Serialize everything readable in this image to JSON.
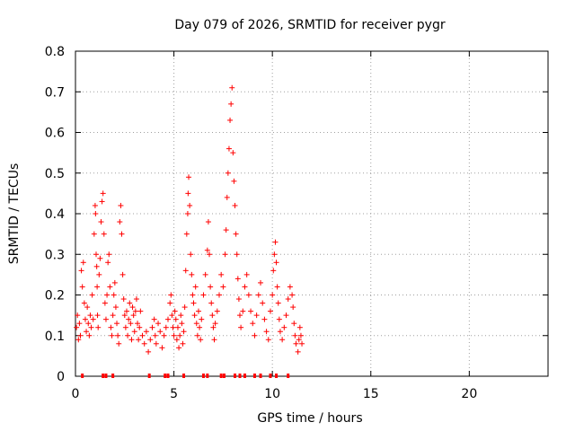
{
  "chart_data": {
    "type": "scatter",
    "title": "Day 079 of 2026, SRMTID for receiver pygr",
    "xlabel": "GPS time / hours",
    "ylabel": "SRMTID / TECUs",
    "xlim": [
      0,
      24
    ],
    "ylim": [
      0,
      0.8
    ],
    "xticks": [
      0,
      5,
      10,
      15,
      20
    ],
    "yticks": [
      0,
      0.1,
      0.2,
      0.3,
      0.4,
      0.5,
      0.6,
      0.7,
      0.8
    ],
    "xtick_labels": [
      "0",
      "5",
      "10",
      "15",
      "20"
    ],
    "ytick_labels": [
      "0",
      "0.1",
      "0.2",
      "0.3",
      "0.4",
      "0.5",
      "0.6",
      "0.7",
      "0.8"
    ],
    "grid": true,
    "marker": "+",
    "color": "#ff0000",
    "series": [
      {
        "name": "SRMTID",
        "points": [
          [
            0.05,
            0.12
          ],
          [
            0.1,
            0.15
          ],
          [
            0.15,
            0.09
          ],
          [
            0.2,
            0.13
          ],
          [
            0.25,
            0.1
          ],
          [
            0.3,
            0.26
          ],
          [
            0.35,
            0.22
          ],
          [
            0.4,
            0.28
          ],
          [
            0.45,
            0.18
          ],
          [
            0.5,
            0.14
          ],
          [
            0.55,
            0.11
          ],
          [
            0.6,
            0.17
          ],
          [
            0.65,
            0.13
          ],
          [
            0.7,
            0.1
          ],
          [
            0.75,
            0.15
          ],
          [
            0.8,
            0.12
          ],
          [
            0.85,
            0.2
          ],
          [
            0.9,
            0.14
          ],
          [
            0.95,
            0.35
          ],
          [
            1.0,
            0.42
          ],
          [
            1.02,
            0.4
          ],
          [
            1.05,
            0.3
          ],
          [
            1.08,
            0.27
          ],
          [
            1.1,
            0.22
          ],
          [
            1.12,
            0.15
          ],
          [
            1.15,
            0.12
          ],
          [
            1.2,
            0.25
          ],
          [
            1.25,
            0.29
          ],
          [
            1.3,
            0.38
          ],
          [
            1.35,
            0.43
          ],
          [
            1.4,
            0.45
          ],
          [
            1.45,
            0.35
          ],
          [
            1.5,
            0.18
          ],
          [
            1.55,
            0.14
          ],
          [
            1.6,
            0.2
          ],
          [
            1.65,
            0.28
          ],
          [
            1.7,
            0.3
          ],
          [
            1.75,
            0.22
          ],
          [
            1.8,
            0.12
          ],
          [
            1.85,
            0.1
          ],
          [
            1.9,
            0.15
          ],
          [
            1.95,
            0.2
          ],
          [
            2.0,
            0.23
          ],
          [
            2.05,
            0.17
          ],
          [
            2.1,
            0.13
          ],
          [
            2.15,
            0.1
          ],
          [
            2.2,
            0.08
          ],
          [
            2.25,
            0.38
          ],
          [
            2.3,
            0.42
          ],
          [
            2.35,
            0.35
          ],
          [
            2.4,
            0.25
          ],
          [
            2.45,
            0.19
          ],
          [
            2.5,
            0.15
          ],
          [
            2.55,
            0.12
          ],
          [
            2.6,
            0.16
          ],
          [
            2.65,
            0.1
          ],
          [
            2.7,
            0.14
          ],
          [
            2.75,
            0.18
          ],
          [
            2.8,
            0.13
          ],
          [
            2.85,
            0.09
          ],
          [
            2.9,
            0.17
          ],
          [
            2.95,
            0.15
          ],
          [
            3.0,
            0.11
          ],
          [
            3.05,
            0.16
          ],
          [
            3.1,
            0.19
          ],
          [
            3.15,
            0.13
          ],
          [
            3.2,
            0.09
          ],
          [
            3.25,
            0.12
          ],
          [
            3.3,
            0.16
          ],
          [
            3.4,
            0.1
          ],
          [
            3.5,
            0.08
          ],
          [
            3.6,
            0.11
          ],
          [
            3.7,
            0.06
          ],
          [
            3.8,
            0.09
          ],
          [
            3.9,
            0.12
          ],
          [
            4.0,
            0.14
          ],
          [
            4.05,
            0.1
          ],
          [
            4.1,
            0.08
          ],
          [
            4.2,
            0.13
          ],
          [
            4.3,
            0.11
          ],
          [
            4.4,
            0.07
          ],
          [
            4.5,
            0.1
          ],
          [
            4.6,
            0.12
          ],
          [
            4.7,
            0.14
          ],
          [
            4.8,
            0.18
          ],
          [
            4.85,
            0.2
          ],
          [
            4.9,
            0.15
          ],
          [
            4.95,
            0.12
          ],
          [
            5.0,
            0.1
          ],
          [
            5.05,
            0.16
          ],
          [
            5.1,
            0.14
          ],
          [
            5.15,
            0.09
          ],
          [
            5.2,
            0.12
          ],
          [
            5.25,
            0.07
          ],
          [
            5.3,
            0.1
          ],
          [
            5.35,
            0.15
          ],
          [
            5.4,
            0.13
          ],
          [
            5.45,
            0.08
          ],
          [
            5.5,
            0.11
          ],
          [
            5.55,
            0.17
          ],
          [
            5.6,
            0.26
          ],
          [
            5.65,
            0.35
          ],
          [
            5.7,
            0.4
          ],
          [
            5.72,
            0.45
          ],
          [
            5.75,
            0.49
          ],
          [
            5.8,
            0.42
          ],
          [
            5.85,
            0.3
          ],
          [
            5.9,
            0.25
          ],
          [
            5.95,
            0.2
          ],
          [
            6.0,
            0.18
          ],
          [
            6.05,
            0.15
          ],
          [
            6.1,
            0.22
          ],
          [
            6.15,
            0.13
          ],
          [
            6.2,
            0.1
          ],
          [
            6.25,
            0.16
          ],
          [
            6.3,
            0.12
          ],
          [
            6.35,
            0.09
          ],
          [
            6.4,
            0.14
          ],
          [
            6.5,
            0.2
          ],
          [
            6.6,
            0.25
          ],
          [
            6.7,
            0.31
          ],
          [
            6.75,
            0.38
          ],
          [
            6.8,
            0.3
          ],
          [
            6.85,
            0.22
          ],
          [
            6.9,
            0.18
          ],
          [
            6.95,
            0.15
          ],
          [
            7.0,
            0.12
          ],
          [
            7.05,
            0.09
          ],
          [
            7.1,
            0.13
          ],
          [
            7.2,
            0.16
          ],
          [
            7.3,
            0.2
          ],
          [
            7.4,
            0.25
          ],
          [
            7.5,
            0.22
          ],
          [
            7.6,
            0.3
          ],
          [
            7.65,
            0.36
          ],
          [
            7.7,
            0.44
          ],
          [
            7.75,
            0.5
          ],
          [
            7.8,
            0.56
          ],
          [
            7.85,
            0.63
          ],
          [
            7.9,
            0.67
          ],
          [
            7.95,
            0.71
          ],
          [
            8.0,
            0.55
          ],
          [
            8.05,
            0.48
          ],
          [
            8.1,
            0.42
          ],
          [
            8.15,
            0.35
          ],
          [
            8.2,
            0.3
          ],
          [
            8.25,
            0.24
          ],
          [
            8.3,
            0.19
          ],
          [
            8.35,
            0.15
          ],
          [
            8.4,
            0.12
          ],
          [
            8.5,
            0.16
          ],
          [
            8.6,
            0.22
          ],
          [
            8.7,
            0.25
          ],
          [
            8.8,
            0.2
          ],
          [
            8.9,
            0.16
          ],
          [
            9.0,
            0.13
          ],
          [
            9.1,
            0.1
          ],
          [
            9.2,
            0.15
          ],
          [
            9.3,
            0.2
          ],
          [
            9.4,
            0.23
          ],
          [
            9.5,
            0.18
          ],
          [
            9.6,
            0.14
          ],
          [
            9.7,
            0.11
          ],
          [
            9.8,
            0.09
          ],
          [
            9.9,
            0.16
          ],
          [
            10.0,
            0.2
          ],
          [
            10.05,
            0.26
          ],
          [
            10.1,
            0.3
          ],
          [
            10.15,
            0.33
          ],
          [
            10.2,
            0.28
          ],
          [
            10.25,
            0.22
          ],
          [
            10.3,
            0.18
          ],
          [
            10.35,
            0.14
          ],
          [
            10.4,
            0.11
          ],
          [
            10.5,
            0.09
          ],
          [
            10.6,
            0.12
          ],
          [
            10.7,
            0.15
          ],
          [
            10.8,
            0.19
          ],
          [
            10.9,
            0.22
          ],
          [
            11.0,
            0.2
          ],
          [
            11.05,
            0.17
          ],
          [
            11.1,
            0.13
          ],
          [
            11.15,
            0.1
          ],
          [
            11.2,
            0.08
          ],
          [
            11.3,
            0.06
          ],
          [
            11.35,
            0.09
          ],
          [
            11.4,
            0.12
          ],
          [
            11.45,
            0.1
          ],
          [
            11.5,
            0.08
          ]
        ]
      }
    ],
    "zero_markers_x": [
      0.35,
      1.4,
      1.55,
      1.9,
      3.75,
      4.55,
      4.7,
      5.5,
      6.5,
      6.7,
      7.4,
      7.55,
      8.1,
      8.35,
      8.6,
      9.1,
      9.4,
      9.9,
      10.2,
      10.8
    ]
  }
}
